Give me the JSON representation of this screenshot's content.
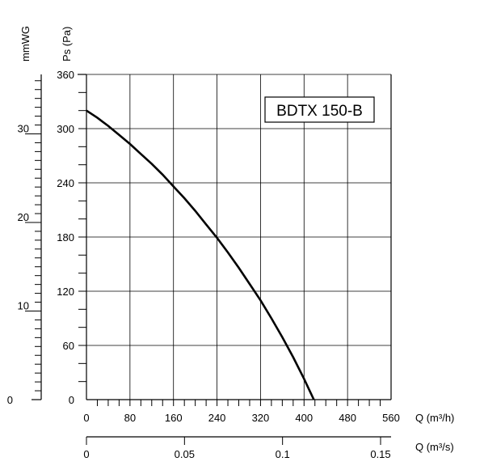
{
  "chart_data": {
    "type": "line",
    "title": "",
    "model_label": "BDTX 150-B",
    "xlabel": "Q (m³/h)",
    "xlabel_secondary": "Q (m³/s)",
    "ylabel": "Ps (Pa)",
    "ylabel_secondary": "mmWG",
    "xlim": [
      0,
      560
    ],
    "ylim": [
      0,
      360
    ],
    "x_ticks": [
      "0",
      "80",
      "160",
      "240",
      "320",
      "400",
      "480",
      "560"
    ],
    "y_ticks": [
      "0",
      "60",
      "120",
      "180",
      "240",
      "300",
      "360"
    ],
    "x2_ticks": [
      "0",
      "0.05",
      "0.1",
      "0.15"
    ],
    "x2_tick_values": [
      0,
      0.05,
      0.1,
      0.15
    ],
    "y2_ticks": [
      "0",
      "10",
      "20",
      "30"
    ],
    "y2_tick_values": [
      0,
      10,
      20,
      30
    ],
    "grid": true,
    "series": [
      {
        "x": [
          0,
          20,
          40,
          60,
          80,
          100,
          120,
          140,
          160,
          180,
          200,
          220,
          240,
          260,
          280,
          300,
          320,
          340,
          360,
          380,
          400,
          418
        ],
        "y": [
          320,
          312,
          303,
          293,
          283,
          272,
          261,
          249,
          236,
          223,
          209,
          194,
          179,
          163,
          146,
          128,
          110,
          90,
          69,
          47,
          23,
          0
        ]
      }
    ]
  }
}
